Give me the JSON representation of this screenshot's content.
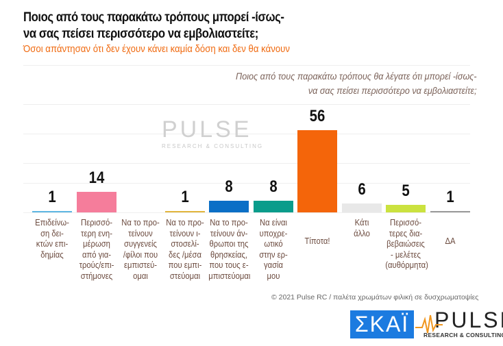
{
  "header": {
    "title_line1": "Ποιος από τους παρακάτω τρόπους μπορεί -ίσως-",
    "title_line2": "να σας πείσει περισσότερο να εμβολιαστείτε;",
    "subtitle": "Όσοι απάντησαν ότι δεν έχουν κάνει καμία δόση και δεν θα κάνουν"
  },
  "watermark": {
    "brand": "PULSE",
    "tagline": "RESEARCH & CONSULTING"
  },
  "chart_data": {
    "type": "bar",
    "title": "Ποιος από τους παρακάτω τρόπους θα λέγατε ότι μπορεί -ίσως-\nνα σας πείσει περισσότερο να εμβολιαστείτε;",
    "categories": [
      "Επιδείνω-\nση δει-\nκτών επι-\nδημίας",
      "Περισσό-\nτερη ενη-\nμέρωση\nαπό για-\nτρούς/επι-\nστήμονες",
      "Να το προ-\nτείνουν\nσυγγενείς\n/φίλοι που\nεμπιστεύ-\nομαι",
      "Να το προ-\nτείνουν ι-\nστοσελί-\nδες /μέσα\nπου εμπι-\nστεύομαι",
      "Να το προ-\nτείνουν άν-\nθρωποι της\nθρησκείας,\nπου τους ε-\nμπιστεύομαι",
      "Να είναι\nυποχρε-\nωτικό\nστην ερ-\nγασία\nμου",
      "Τίποτα!",
      "Κάτι\nάλλο",
      "Περισσό-\nτερες δια-\nβεβαιώσεις\n- μελέτες\n(αυθόρμητα)",
      "ΔΑ"
    ],
    "values": [
      1,
      14,
      null,
      1,
      8,
      8,
      56,
      6,
      5,
      1
    ],
    "colors": [
      "#5db6e3",
      "#f57d9b",
      "#cccccc",
      "#e2b53c",
      "#0b6fc6",
      "#0a9c8b",
      "#f4650a",
      "#e8e8e8",
      "#cbe23f",
      "#9a9a9a"
    ],
    "ylim": [
      0,
      60
    ],
    "grid": true
  },
  "footer": {
    "text": "© 2021 Pulse RC   /   παλέτα χρωμάτων φιλική σε δυσχρωματοψίες"
  },
  "logos": {
    "skai": "ΣΚΑΪ",
    "pulse": "PULSE",
    "pulse_tagline": "RESEARCH & CONSULTING"
  }
}
